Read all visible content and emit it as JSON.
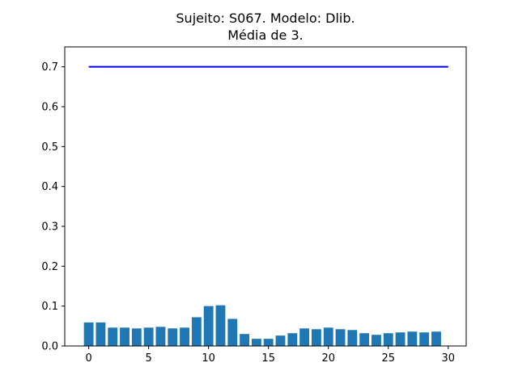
{
  "chart_data": {
    "type": "bar",
    "title_line1": "Sujeito: S067. Modelo: Dlib.",
    "title_line2": "Média de 3.",
    "xlabel": "",
    "ylabel": "",
    "x": [
      0,
      1,
      2,
      3,
      4,
      5,
      6,
      7,
      8,
      9,
      10,
      11,
      12,
      13,
      14,
      15,
      16,
      17,
      18,
      19,
      20,
      21,
      22,
      23,
      24,
      25,
      26,
      27,
      28,
      29
    ],
    "values": [
      0.059,
      0.059,
      0.046,
      0.046,
      0.044,
      0.046,
      0.048,
      0.044,
      0.046,
      0.072,
      0.1,
      0.102,
      0.068,
      0.03,
      0.018,
      0.018,
      0.026,
      0.032,
      0.044,
      0.042,
      0.046,
      0.042,
      0.04,
      0.032,
      0.028,
      0.032,
      0.034,
      0.036,
      0.034,
      0.036
    ],
    "threshold_line": {
      "y": 0.7,
      "x_start": 0,
      "x_end": 30,
      "color": "#0000ff"
    },
    "bar_color": "#1f77b4",
    "xlim": [
      -2,
      31.5
    ],
    "ylim": [
      0,
      0.75
    ],
    "xticks": [
      0,
      5,
      10,
      15,
      20,
      25,
      30
    ],
    "xtick_labels": [
      "0",
      "5",
      "10",
      "15",
      "20",
      "25",
      "30"
    ],
    "yticks": [
      0.0,
      0.1,
      0.2,
      0.3,
      0.4,
      0.5,
      0.6,
      0.7
    ],
    "ytick_labels": [
      "0.0",
      "0.1",
      "0.2",
      "0.3",
      "0.4",
      "0.5",
      "0.6",
      "0.7"
    ],
    "grid": false,
    "legend": "none"
  }
}
